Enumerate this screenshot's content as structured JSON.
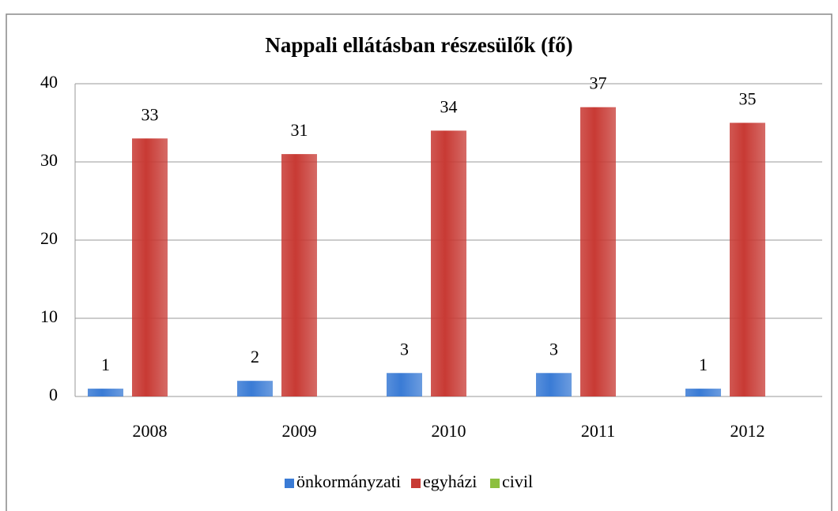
{
  "chart_data": {
    "type": "bar",
    "title": "Nappali ellátásban részesülők (fő)",
    "categories": [
      "2008",
      "2009",
      "2010",
      "2011",
      "2012"
    ],
    "series": [
      {
        "name": "önkormányzati",
        "color": "#3a7bd5",
        "values": [
          1,
          2,
          3,
          3,
          1
        ]
      },
      {
        "name": "egyházi",
        "color": "#c83a34",
        "values": [
          33,
          31,
          34,
          37,
          35
        ]
      },
      {
        "name": "civil",
        "color": "#8cbf3f",
        "values": [
          null,
          null,
          null,
          null,
          null
        ]
      }
    ],
    "ylim": [
      0,
      40
    ],
    "yticks": [
      0,
      10,
      20,
      30,
      40
    ],
    "grid": true,
    "legend": "bottom"
  }
}
